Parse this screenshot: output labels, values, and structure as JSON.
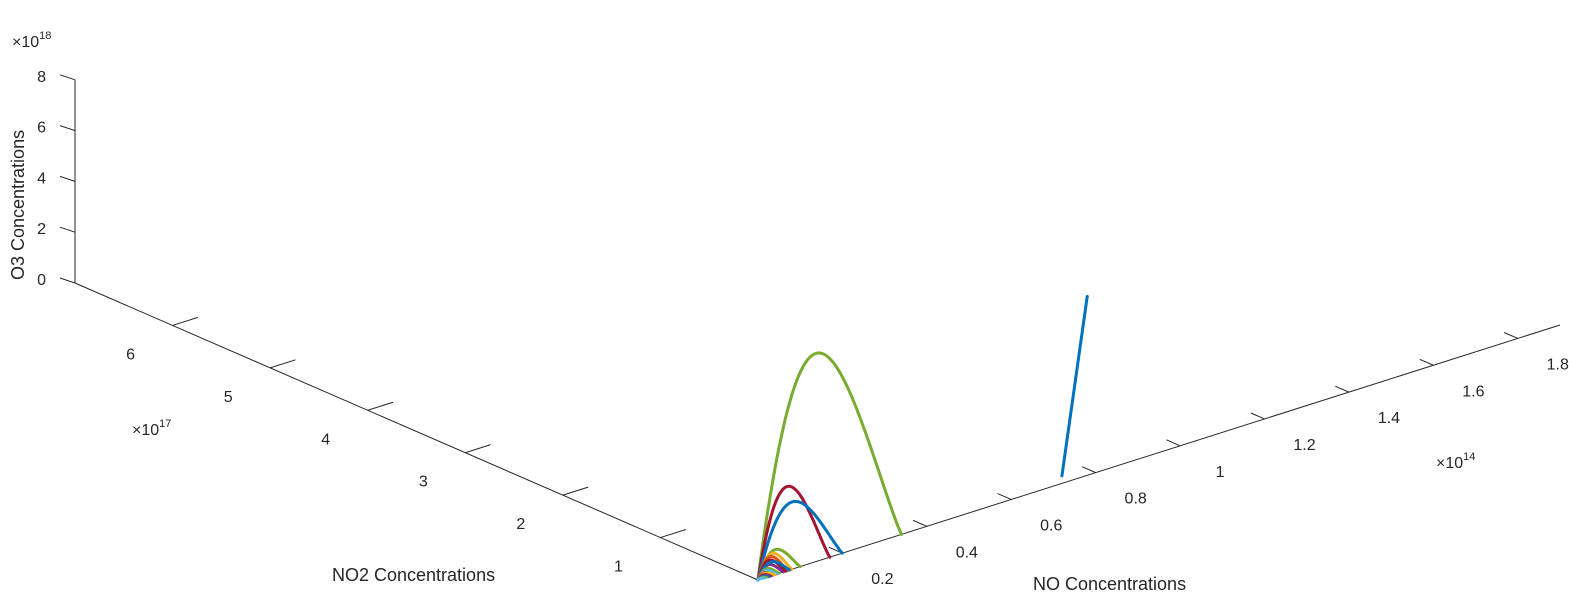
{
  "chart_data": {
    "type": "line",
    "projection": "3d",
    "xlabel": "NO Concentrations",
    "ylabel": "NO2 Concentrations",
    "zlabel": "O3 Concentrations",
    "x_exponent": "×10",
    "x_exponent_power": "14",
    "y_exponent": "×10",
    "y_exponent_power": "17",
    "z_exponent": "×10",
    "z_exponent_power": "18",
    "x_ticks": [
      "0.2",
      "0.4",
      "0.6",
      "0.8",
      "1",
      "1.2",
      "1.4",
      "1.6",
      "1.8"
    ],
    "x_tick_values": [
      0.2,
      0.4,
      0.6,
      0.8,
      1.0,
      1.2,
      1.4,
      1.6,
      1.8
    ],
    "y_ticks": [
      "1",
      "2",
      "3",
      "4",
      "5",
      "6"
    ],
    "y_tick_values": [
      1,
      2,
      3,
      4,
      5,
      6
    ],
    "z_ticks": [
      "0",
      "2",
      "4",
      "6",
      "8"
    ],
    "z_tick_values": [
      0,
      2,
      4,
      6,
      8
    ],
    "xlim": [
      0,
      1.9
    ],
    "ylim": [
      0,
      7
    ],
    "zlim": [
      0,
      8
    ],
    "grid": false,
    "colors": [
      "#0072BD",
      "#D95319",
      "#EDB120",
      "#7E2F8E",
      "#77AC30",
      "#4DBEEE",
      "#A2142F"
    ],
    "arches": [
      {
        "color": "#77AC30",
        "x_width": 0.34,
        "peak": 8.2
      },
      {
        "color": "#A2142F",
        "x_width": 0.17,
        "peak": 3.3
      },
      {
        "color": "#0072BD",
        "x_width": 0.2,
        "peak": 2.6
      },
      {
        "color": "#77AC30",
        "x_width": 0.1,
        "peak": 0.95
      },
      {
        "color": "#EDB120",
        "x_width": 0.08,
        "peak": 0.85
      },
      {
        "color": "#D95319",
        "x_width": 0.07,
        "peak": 0.75
      },
      {
        "color": "#A2142F",
        "x_width": 0.065,
        "peak": 0.62
      },
      {
        "color": "#7E2F8E",
        "x_width": 0.06,
        "peak": 0.45
      },
      {
        "color": "#0072BD",
        "x_width": 0.075,
        "peak": 0.52
      },
      {
        "color": "#77AC30",
        "x_width": 0.05,
        "peak": 0.32
      },
      {
        "color": "#4DBEEE",
        "x_width": 0.045,
        "peak": 0.25
      },
      {
        "color": "#D95319",
        "x_width": 0.035,
        "peak": 0.2
      },
      {
        "color": "#EDB120",
        "x_width": 0.04,
        "peak": 0.16
      },
      {
        "color": "#A2142F",
        "x_width": 0.03,
        "peak": 0.12
      },
      {
        "color": "#7E2F8E",
        "x_width": 0.028,
        "peak": 0.09
      },
      {
        "color": "#0072BD",
        "x_width": 0.025,
        "peak": 0.06
      },
      {
        "color": "#77AC30",
        "x_width": 0.02,
        "peak": 0.04
      },
      {
        "color": "#4DBEEE",
        "x_width": 0.015,
        "peak": 0.02
      }
    ],
    "vertical_line": {
      "color": "#0072BD",
      "x": 0.72,
      "y": 0,
      "z_start": 0.3,
      "z_end": 7.2,
      "x_end": 0.78
    }
  }
}
